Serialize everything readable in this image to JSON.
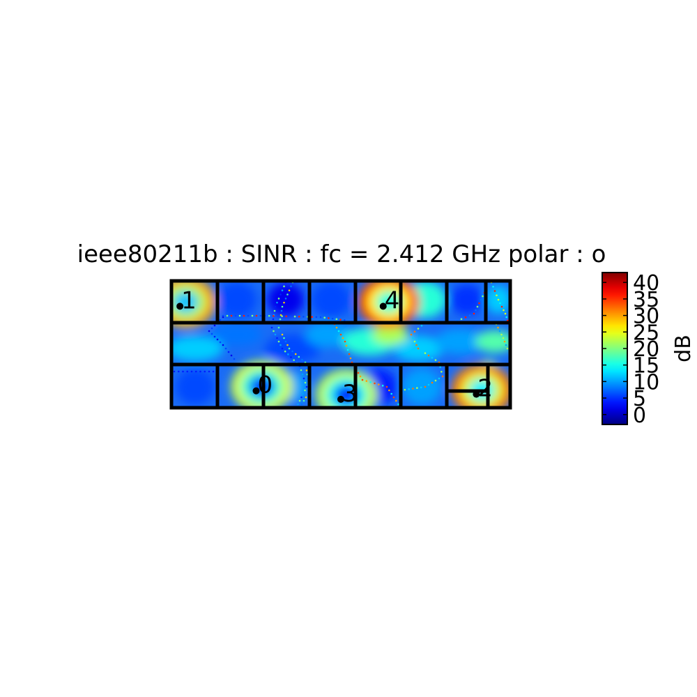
{
  "chart_data": {
    "type": "heatmap",
    "title": "ieee80211b : SINR :  fc = 2.412 GHz polar : o",
    "colormap": "jet",
    "colorbar": {
      "label": "dB",
      "range": [
        -3,
        43
      ],
      "ticks": [
        0,
        5,
        10,
        15,
        20,
        25,
        30,
        35,
        40
      ]
    },
    "floor_extent": {
      "x": [
        0,
        20
      ],
      "y": [
        0,
        7.5
      ]
    },
    "grid": false,
    "axes_visible": false,
    "access_points": [
      {
        "label": "0",
        "x": 5.0,
        "y": 1.0,
        "peak_db": 26
      },
      {
        "label": "1",
        "x": 0.5,
        "y": 6.0,
        "peak_db": 32
      },
      {
        "label": "2",
        "x": 18.0,
        "y": 0.8,
        "peak_db": 34
      },
      {
        "label": "3",
        "x": 10.0,
        "y": 0.5,
        "peak_db": 25
      },
      {
        "label": "4",
        "x": 12.5,
        "y": 6.0,
        "peak_db": 36
      }
    ]
  }
}
